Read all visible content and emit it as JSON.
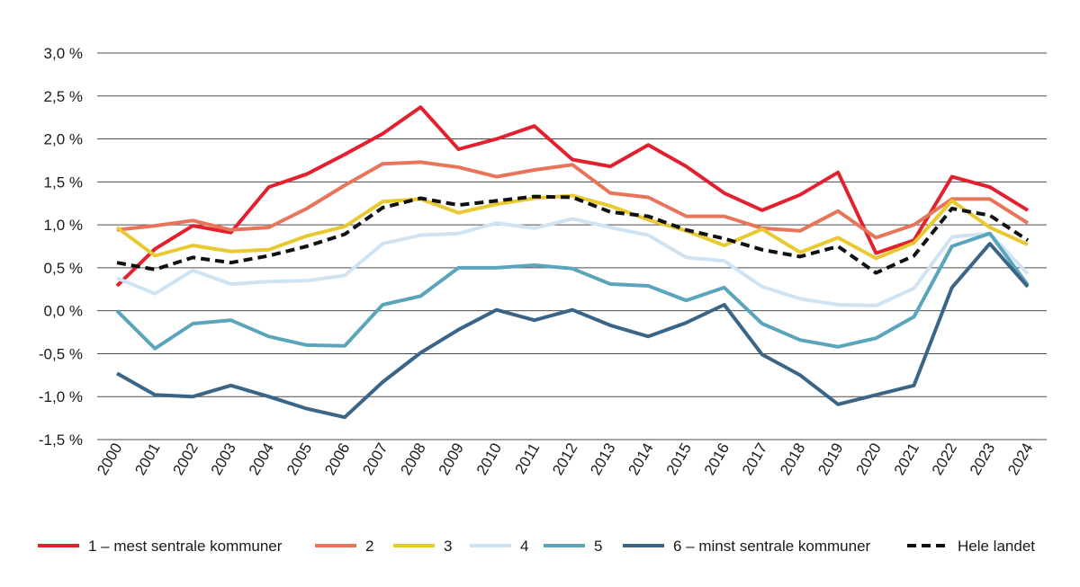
{
  "chart_data": {
    "type": "line",
    "title": "",
    "xlabel": "",
    "ylabel": "",
    "ylim": [
      -1.5,
      3.0
    ],
    "ytick_values": [
      3.0,
      2.5,
      2.0,
      1.5,
      1.0,
      0.5,
      0.0,
      -0.5,
      -1.0,
      -1.5
    ],
    "ytick_labels": [
      "3,0 %",
      "2,5 %",
      "2,0 %",
      "1,5 %",
      "1,0 %",
      "0,5 %",
      "0,0 %",
      "-0,5 %",
      "-1,0 %",
      "-1,5 %"
    ],
    "grid": true,
    "legend_position": "bottom",
    "categories": [
      "2000",
      "2001",
      "2002",
      "2003",
      "2004",
      "2005",
      "2006",
      "2007",
      "2008",
      "2009",
      "2010",
      "2011",
      "2012",
      "2013",
      "2014",
      "2015",
      "2016",
      "2017",
      "2018",
      "2019",
      "2020",
      "2021",
      "2022",
      "2023",
      "2024"
    ],
    "series": [
      {
        "name": "1 – mest sentrale kommuner",
        "color": "#e3202e",
        "dashed": false,
        "values": [
          0.29,
          0.72,
          0.99,
          0.91,
          1.44,
          1.59,
          1.82,
          2.06,
          2.37,
          1.88,
          2.0,
          2.15,
          1.76,
          1.68,
          1.93,
          1.68,
          1.37,
          1.17,
          1.35,
          1.61,
          0.67,
          0.82,
          1.56,
          1.44,
          1.17
        ]
      },
      {
        "name": "2",
        "color": "#e8755a",
        "dashed": false,
        "values": [
          0.94,
          0.99,
          1.05,
          0.94,
          0.97,
          1.19,
          1.46,
          1.71,
          1.73,
          1.67,
          1.56,
          1.64,
          1.7,
          1.37,
          1.32,
          1.1,
          1.1,
          0.96,
          0.93,
          1.16,
          0.85,
          1.0,
          1.3,
          1.3,
          1.02
        ]
      },
      {
        "name": "3",
        "color": "#e8c930",
        "dashed": false,
        "values": [
          0.97,
          0.64,
          0.76,
          0.69,
          0.71,
          0.87,
          0.98,
          1.27,
          1.3,
          1.14,
          1.24,
          1.31,
          1.34,
          1.22,
          1.06,
          0.93,
          0.76,
          0.95,
          0.68,
          0.85,
          0.61,
          0.79,
          1.28,
          0.97,
          0.77
        ]
      },
      {
        "name": "4",
        "color": "#cfe3f2",
        "dashed": false,
        "values": [
          0.38,
          0.2,
          0.47,
          0.31,
          0.34,
          0.35,
          0.41,
          0.78,
          0.88,
          0.9,
          1.02,
          0.96,
          1.07,
          0.97,
          0.88,
          0.62,
          0.58,
          0.28,
          0.14,
          0.07,
          0.06,
          0.26,
          0.86,
          0.9,
          0.43
        ]
      },
      {
        "name": "5",
        "color": "#5ba5bc",
        "dashed": false,
        "values": [
          0.0,
          -0.44,
          -0.15,
          -0.11,
          -0.3,
          -0.4,
          -0.41,
          0.07,
          0.17,
          0.5,
          0.5,
          0.53,
          0.49,
          0.31,
          0.29,
          0.12,
          0.27,
          -0.15,
          -0.34,
          -0.42,
          -0.32,
          -0.07,
          0.75,
          0.9,
          0.3
        ]
      },
      {
        "name": "6 – minst sentrale kommuner",
        "color": "#3b6587",
        "dashed": false,
        "values": [
          -0.73,
          -0.98,
          -1.0,
          -0.87,
          -1.0,
          -1.14,
          -1.24,
          -0.83,
          -0.49,
          -0.22,
          0.01,
          -0.11,
          0.01,
          -0.17,
          -0.3,
          -0.14,
          0.07,
          -0.51,
          -0.75,
          -1.09,
          -0.98,
          -0.87,
          0.27,
          0.78,
          0.28
        ]
      },
      {
        "name": "Hele landet",
        "color": "#111111",
        "dashed": true,
        "values": [
          0.56,
          0.48,
          0.62,
          0.56,
          0.64,
          0.75,
          0.89,
          1.2,
          1.31,
          1.23,
          1.28,
          1.33,
          1.32,
          1.15,
          1.1,
          0.94,
          0.84,
          0.71,
          0.63,
          0.75,
          0.44,
          0.64,
          1.19,
          1.11,
          0.82
        ]
      }
    ]
  }
}
